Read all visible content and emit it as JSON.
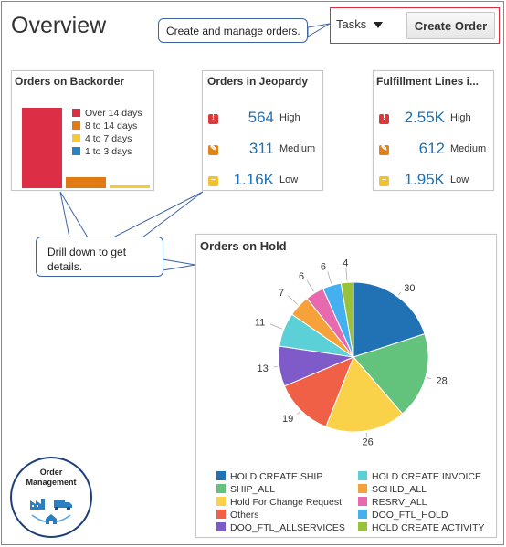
{
  "page": {
    "title": "Overview"
  },
  "header": {
    "tasks_label": "Tasks",
    "create_order_label": "Create Order"
  },
  "callouts": {
    "top": "Create and manage orders.",
    "drill": "Drill down to get details."
  },
  "backorder": {
    "title": "Orders on Backorder",
    "legend": [
      {
        "label": "Over 14 days",
        "color": "#dc2f45"
      },
      {
        "label": "8 to 14 days",
        "color": "#df7a14"
      },
      {
        "label": "4 to 7 days",
        "color": "#f5c93d"
      },
      {
        "label": "1 to 3 days",
        "color": "#2a82c4"
      }
    ]
  },
  "jeopardy": {
    "title": "Orders in Jeopardy",
    "rows": [
      {
        "value": "564",
        "level": "High",
        "color": "#dc3a3a"
      },
      {
        "value": "311",
        "level": "Medium",
        "color": "#e0841a"
      },
      {
        "value": "1.16K",
        "level": "Low",
        "color": "#f2c12e"
      }
    ]
  },
  "fulfillment": {
    "title": "Fulfillment Lines i...",
    "rows": [
      {
        "value": "2.55K",
        "level": "High",
        "color": "#dc3a3a"
      },
      {
        "value": "612",
        "level": "Medium",
        "color": "#e0841a"
      },
      {
        "value": "1.95K",
        "level": "Low",
        "color": "#f2c12e"
      }
    ]
  },
  "hold": {
    "title": "Orders on Hold",
    "legend": [
      {
        "label": "HOLD CREATE SHIP",
        "color": "#2171b5"
      },
      {
        "label": "HOLD CREATE INVOICE",
        "color": "#5bd0d6"
      },
      {
        "label": "SHIP_ALL",
        "color": "#63c37d"
      },
      {
        "label": "SCHLD_ALL",
        "color": "#f6a13a"
      },
      {
        "label": "Hold For Change Request",
        "color": "#f9d249"
      },
      {
        "label": "RESRV_ALL",
        "color": "#e86aae"
      },
      {
        "label": "Others",
        "color": "#ef6047"
      },
      {
        "label": "DOO_FTL_HOLD",
        "color": "#44b0ef"
      },
      {
        "label": "DOO_FTL_ALLSERVICES",
        "color": "#7e5bc9"
      },
      {
        "label": "HOLD CREATE ACTIVITY",
        "color": "#99c23b"
      }
    ]
  },
  "chart_data": [
    {
      "type": "bar",
      "title": "Orders on Backorder",
      "categories": [
        "Over 14 days",
        "8 to 14 days",
        "4 to 7 days",
        "1 to 3 days"
      ],
      "values": [
        85,
        12,
        3,
        0
      ],
      "colors": [
        "#dc2f45",
        "#df7a14",
        "#f5c93d",
        "#2a82c4"
      ]
    },
    {
      "type": "pie",
      "title": "Orders on Hold",
      "slices": [
        {
          "name": "HOLD CREATE SHIP",
          "value": 30,
          "color": "#2171b5"
        },
        {
          "name": "SHIP_ALL",
          "value": 28,
          "color": "#63c37d"
        },
        {
          "name": "Hold For Change Request",
          "value": 26,
          "color": "#f9d249"
        },
        {
          "name": "Others",
          "value": 19,
          "color": "#ef6047"
        },
        {
          "name": "DOO_FTL_ALLSERVICES",
          "value": 13,
          "color": "#7e5bc9"
        },
        {
          "name": "HOLD CREATE INVOICE",
          "value": 11,
          "color": "#5bd0d6"
        },
        {
          "name": "SCHLD_ALL",
          "value": 7,
          "color": "#f6a13a"
        },
        {
          "name": "RESRV_ALL",
          "value": 6,
          "color": "#e86aae"
        },
        {
          "name": "DOO_FTL_HOLD",
          "value": 6,
          "color": "#44b0ef"
        },
        {
          "name": "HOLD CREATE ACTIVITY",
          "value": 4,
          "color": "#99c23b"
        }
      ]
    }
  ],
  "logo": {
    "line1": "Order",
    "line2": "Management",
    "icon": "factory-truck-house-icon"
  }
}
